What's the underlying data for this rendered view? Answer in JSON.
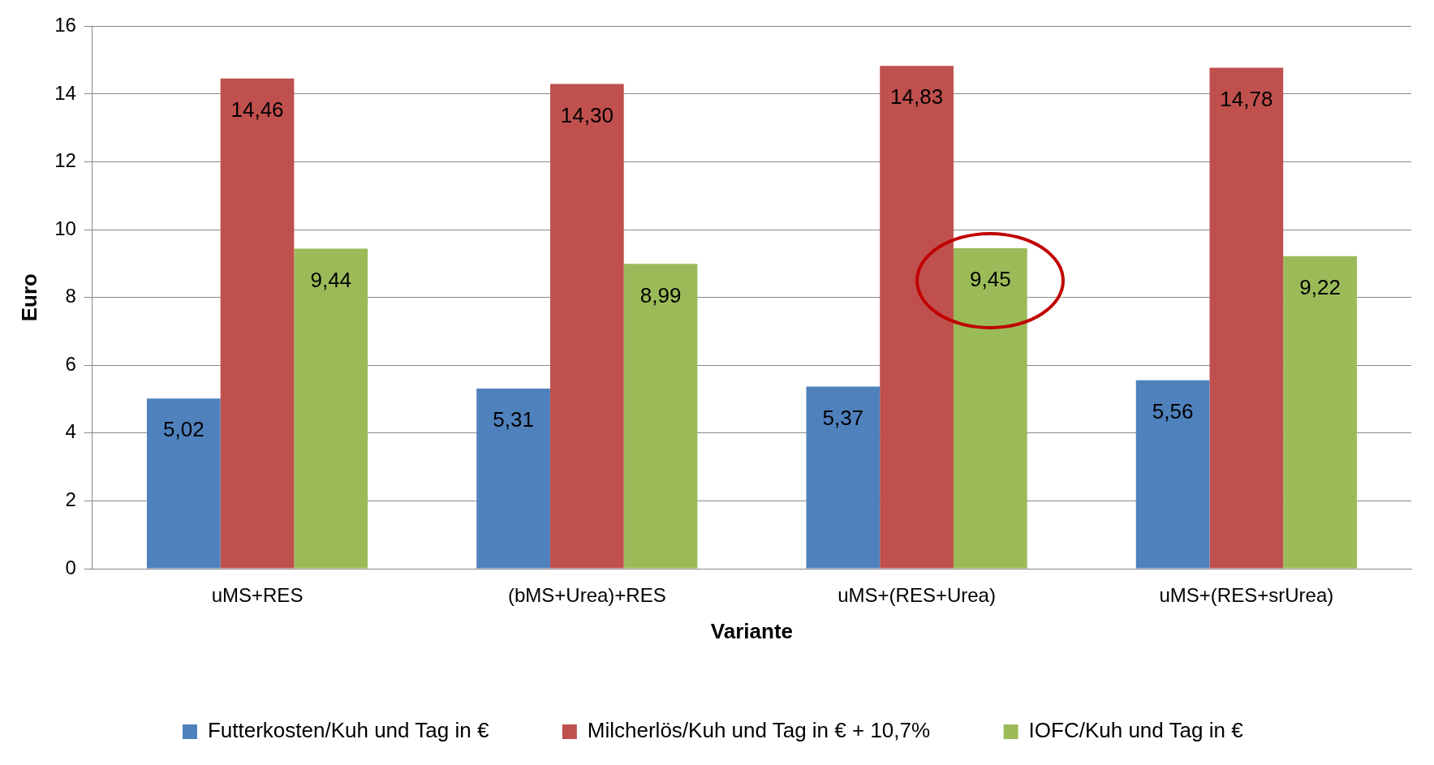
{
  "chart_data": {
    "type": "bar",
    "xlabel": "Variante",
    "ylabel": "Euro",
    "categories": [
      "uMS+RES",
      "(bMS+Urea)+RES",
      "uMS+(RES+Urea)",
      "uMS+(RES+srUrea)"
    ],
    "series": [
      {
        "name": "Futterkosten/Kuh und Tag in €",
        "color": "#4f81bd",
        "values": [
          5.02,
          5.31,
          5.37,
          5.56
        ],
        "value_labels": [
          "5,02",
          "5,31",
          "5,37",
          "5,56"
        ]
      },
      {
        "name": "Milcherlös/Kuh und Tag in € + 10,7%",
        "color": "#c0504d",
        "values": [
          14.46,
          14.3,
          14.83,
          14.78
        ],
        "value_labels": [
          "14,46",
          "14,30",
          "14,83",
          "14,78"
        ]
      },
      {
        "name": "IOFC/Kuh und Tag in €",
        "color": "#9bbb59",
        "values": [
          9.44,
          8.99,
          9.45,
          9.22
        ],
        "value_labels": [
          "9,44",
          "8,99",
          "9,45",
          "9,22"
        ]
      }
    ],
    "ylim": [
      0,
      16
    ],
    "yticks": [
      0,
      2,
      4,
      6,
      8,
      10,
      12,
      14,
      16
    ],
    "grid": "y",
    "legend": "bottom"
  }
}
